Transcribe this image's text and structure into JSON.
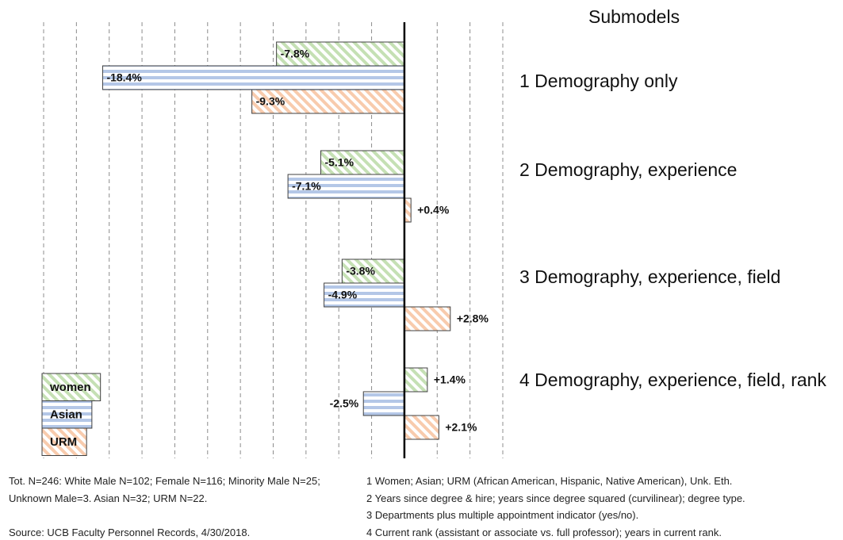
{
  "chart_data": {
    "type": "hbar_grouped",
    "category_title": "Submodels",
    "categories": [
      "1 Demography only",
      "2 Demography, experience",
      "3 Demography, experience, field",
      "4 Demography, experience, field, rank"
    ],
    "series": [
      {
        "name": "women",
        "color": "#c5e0b4",
        "pattern": "diagonal",
        "values": [
          -7.8,
          -5.1,
          -3.8,
          1.4
        ],
        "value_labels": [
          "-7.8%",
          "-5.1%",
          "-3.8%",
          "+1.4%"
        ]
      },
      {
        "name": "Asian",
        "color": "#b4c7e7",
        "pattern": "horizontal",
        "values": [
          -18.4,
          -7.1,
          -4.9,
          -2.5
        ],
        "value_labels": [
          "-18.4%",
          "-7.1%",
          "-4.9%",
          "-2.5%"
        ]
      },
      {
        "name": "URM",
        "color": "#f8cbad",
        "pattern": "diagonal",
        "values": [
          -9.3,
          0.4,
          2.8,
          2.1
        ],
        "value_labels": [
          "-9.3%",
          "+0.4%",
          "+2.8%",
          "+2.1%"
        ]
      }
    ],
    "xlim": [
      -22,
      6
    ],
    "xticks": [
      -22,
      -20,
      -18,
      -16,
      -14,
      -12,
      -10,
      -8,
      -6,
      -4,
      -2,
      0,
      2,
      4,
      6
    ],
    "grid": true,
    "legend": "bottom-left",
    "notes_left": "Tot. N=246: White Male N=102; Female N=116; Minority Male N=25; Unknown Male=3. Asian N=32; URM N=22.",
    "source": "Source: UCB Faculty Personnel Records, 4/30/2018.",
    "notes_right": [
      "1 Women;  Asian; URM (African American, Hispanic, Native American), Unk. Eth.",
      "2 Years since degree & hire;  years since degree squared (curvilinear); degree type.",
      "3 Departments plus multiple appointment indicator (yes/no).",
      "4 Current rank (assistant or associate vs. full professor); years in current rank."
    ]
  }
}
